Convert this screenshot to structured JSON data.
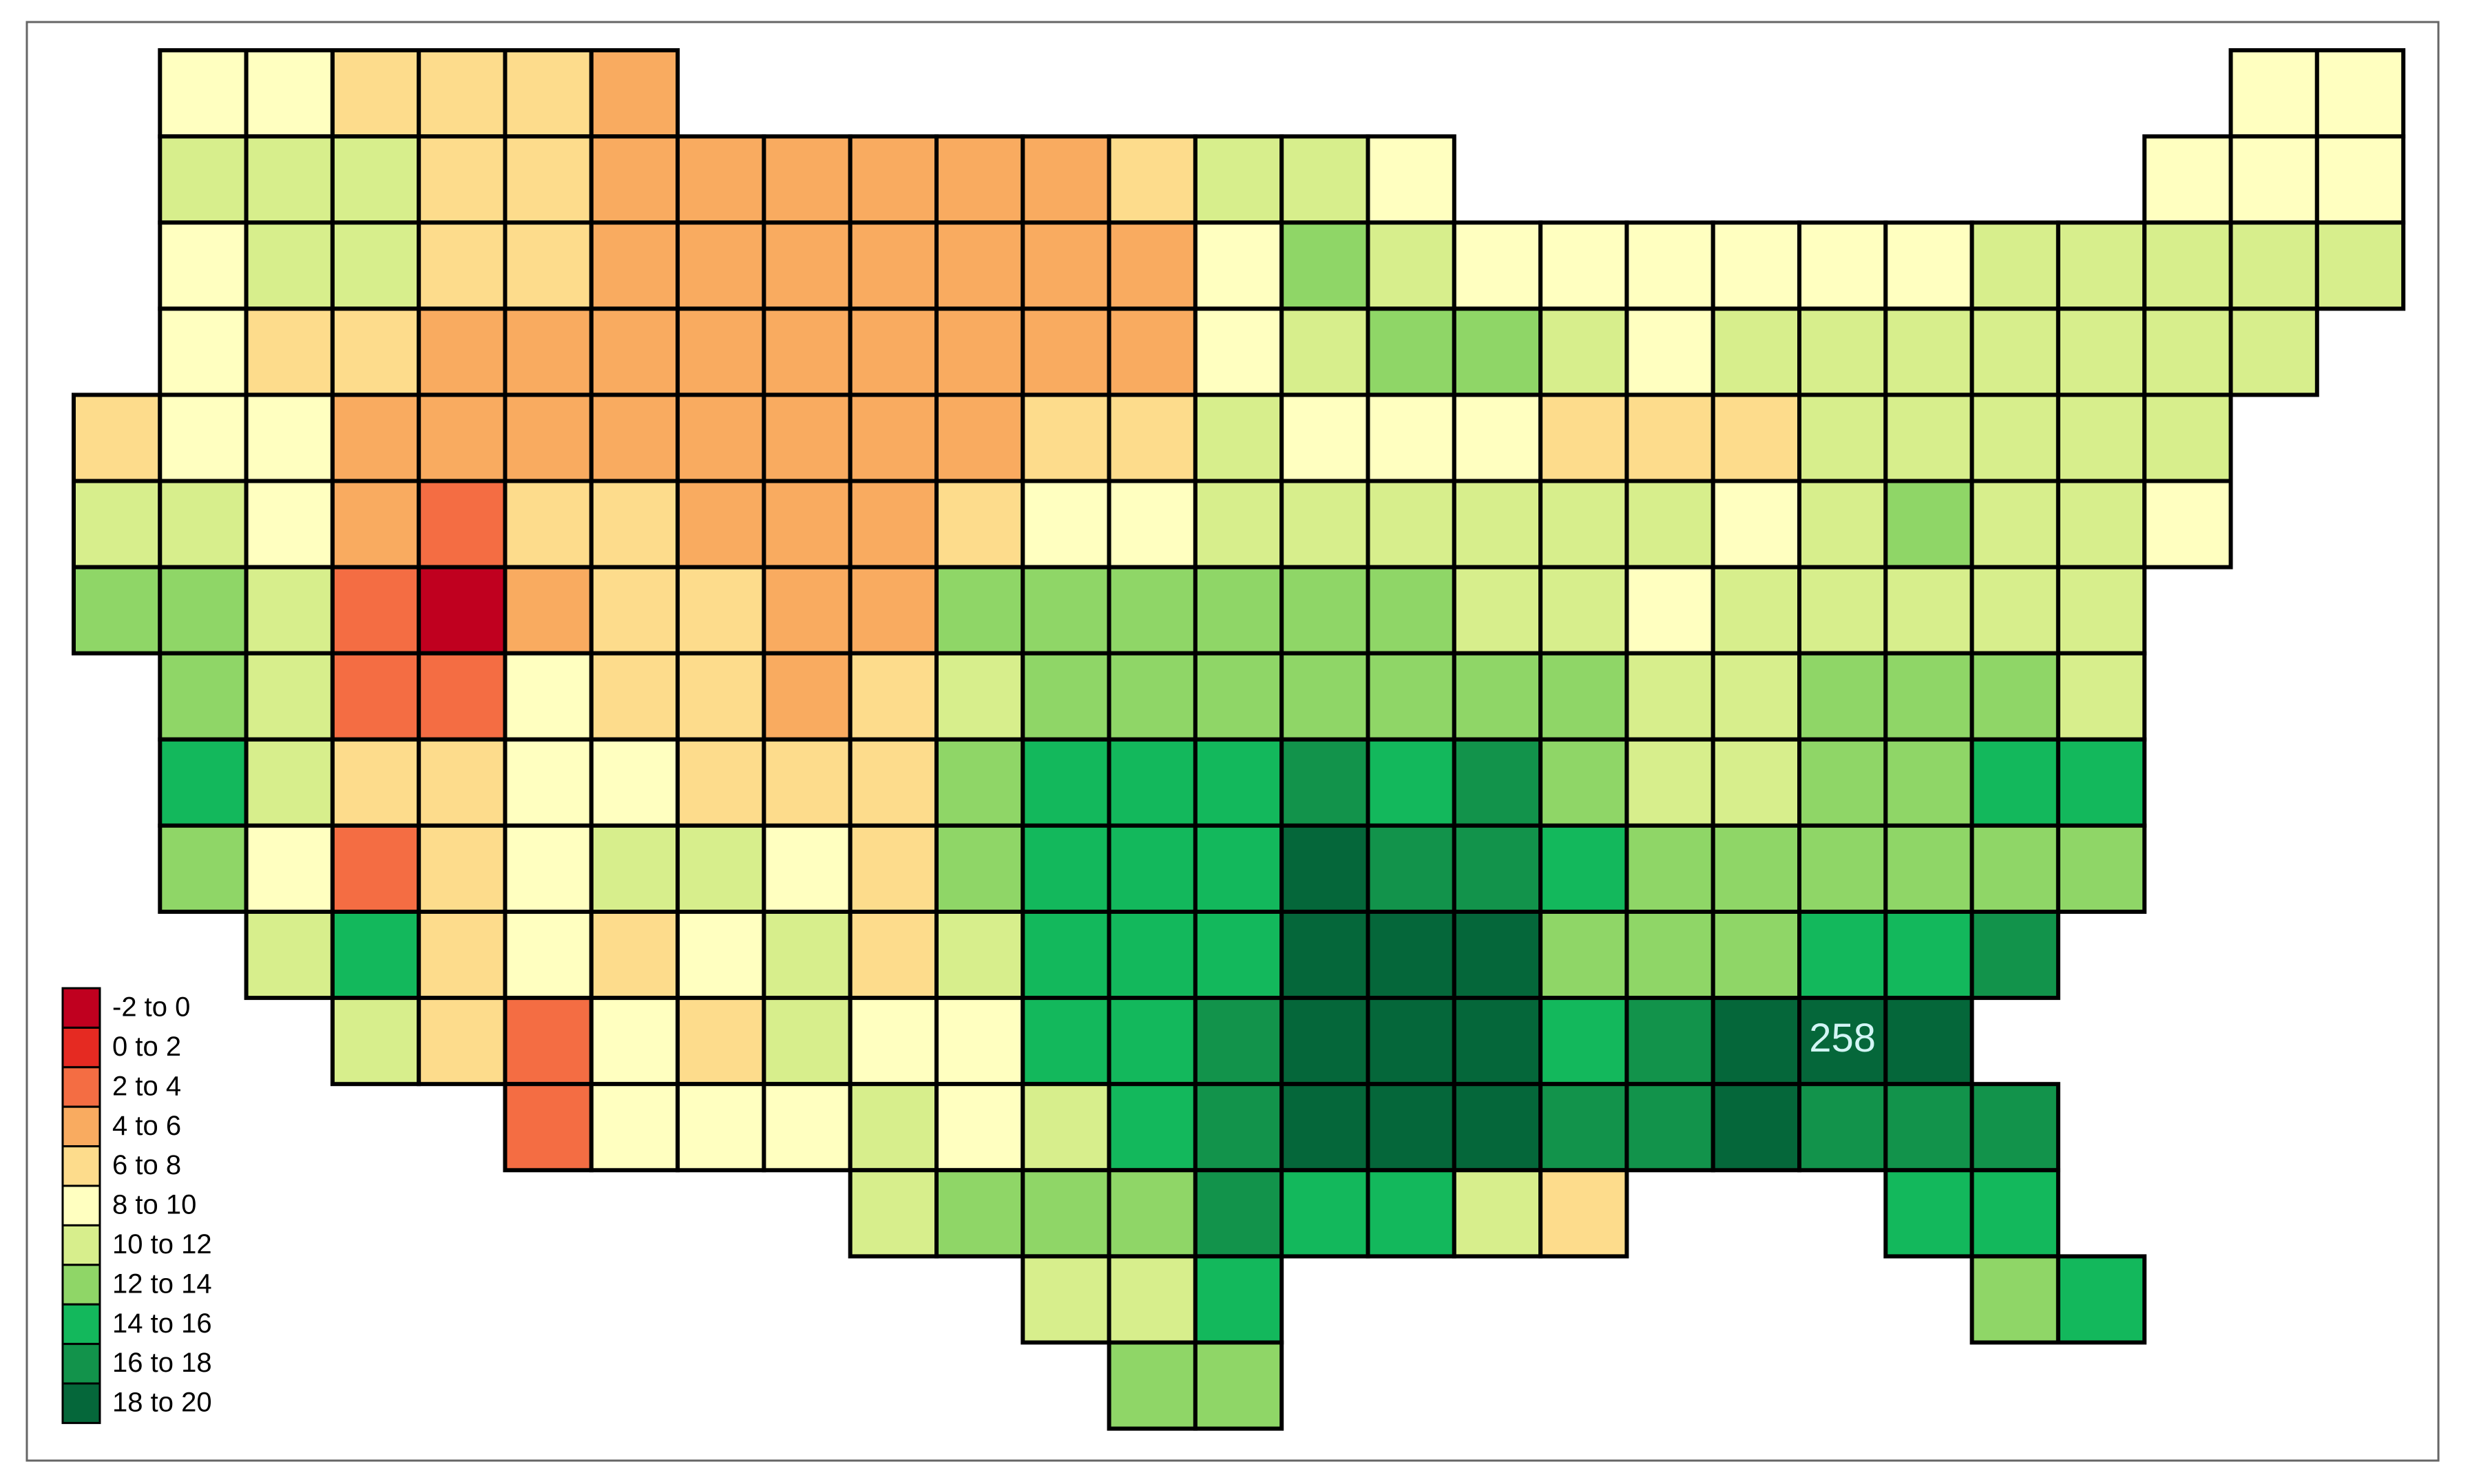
{
  "map": {
    "legend": {
      "bins": [
        -2,
        0,
        2,
        4,
        6,
        8,
        10,
        12,
        14,
        16,
        18,
        20
      ],
      "labels": [
        "-2 to 0",
        "0 to 2",
        "2 to 4",
        "4 to 6",
        "6 to 8",
        "8 to 10",
        "10 to 12",
        "12 to 14",
        "14 to 16",
        "16 to 18",
        "18 to 20"
      ],
      "colors": [
        "#c0001f",
        "#e52a22",
        "#f46d43",
        "#f9ab60",
        "#fddc8c",
        "#ffffc0",
        "#d7ee8c",
        "#8fd667",
        "#13b85c",
        "#12934b",
        "#05673a"
      ]
    },
    "annotation": "258",
    "rows": [
      [
        null,
        9,
        9,
        7,
        7,
        7,
        5,
        null,
        null,
        null,
        null,
        null,
        null,
        null,
        null,
        null,
        null,
        null,
        null,
        null,
        null,
        null,
        null,
        null,
        null,
        9,
        9
      ],
      [
        null,
        11,
        11,
        11,
        7,
        7,
        5,
        5,
        5,
        5,
        5,
        5,
        7,
        11,
        11,
        9,
        null,
        null,
        null,
        null,
        null,
        null,
        null,
        null,
        9,
        9,
        9
      ],
      [
        null,
        9,
        11,
        11,
        7,
        7,
        5,
        5,
        5,
        5,
        5,
        5,
        5,
        9,
        13,
        11,
        9,
        9,
        9,
        9,
        9,
        9,
        11,
        11,
        11,
        11,
        11
      ],
      [
        null,
        9,
        7,
        7,
        5,
        5,
        5,
        5,
        5,
        5,
        5,
        5,
        5,
        9,
        11,
        13,
        13,
        11,
        9,
        11,
        11,
        11,
        11,
        11,
        11,
        11,
        null
      ],
      [
        7,
        9,
        9,
        5,
        5,
        5,
        5,
        5,
        5,
        5,
        5,
        7,
        7,
        11,
        9,
        9,
        9,
        7,
        7,
        7,
        11,
        11,
        11,
        11,
        11,
        null,
        null
      ],
      [
        11,
        11,
        9,
        5,
        3,
        7,
        7,
        5,
        5,
        5,
        7,
        9,
        9,
        11,
        11,
        11,
        11,
        11,
        11,
        9,
        11,
        13,
        11,
        11,
        9,
        null,
        null
      ],
      [
        13,
        13,
        11,
        3,
        -1,
        5,
        7,
        7,
        5,
        5,
        13,
        13,
        13,
        13,
        13,
        13,
        11,
        11,
        9,
        11,
        11,
        11,
        11,
        11,
        null,
        null,
        null
      ],
      [
        null,
        13,
        11,
        3,
        3,
        9,
        7,
        7,
        5,
        7,
        11,
        13,
        13,
        13,
        13,
        13,
        13,
        13,
        11,
        11,
        13,
        13,
        13,
        11,
        null,
        null,
        null
      ],
      [
        null,
        15,
        11,
        7,
        7,
        9,
        9,
        7,
        7,
        7,
        13,
        15,
        15,
        15,
        17,
        15,
        17,
        13,
        11,
        11,
        13,
        13,
        15,
        15,
        null,
        null,
        null
      ],
      [
        null,
        13,
        9,
        3,
        7,
        9,
        11,
        11,
        9,
        7,
        13,
        15,
        15,
        15,
        19,
        17,
        17,
        15,
        13,
        13,
        13,
        13,
        13,
        13,
        null,
        null,
        null
      ],
      [
        null,
        null,
        11,
        15,
        7,
        9,
        7,
        9,
        11,
        7,
        11,
        15,
        15,
        15,
        19,
        19,
        19,
        13,
        13,
        13,
        15,
        15,
        17,
        null,
        null,
        null,
        null
      ],
      [
        null,
        null,
        null,
        11,
        7,
        3,
        9,
        7,
        11,
        9,
        9,
        15,
        15,
        17,
        19,
        19,
        19,
        15,
        17,
        19,
        19,
        19,
        null,
        null,
        null,
        null,
        null
      ],
      [
        null,
        null,
        null,
        null,
        null,
        3,
        9,
        9,
        9,
        11,
        9,
        11,
        15,
        17,
        19,
        19,
        19,
        17,
        17,
        19,
        17,
        17,
        17,
        null,
        null,
        null,
        null
      ],
      [
        null,
        null,
        null,
        null,
        null,
        null,
        null,
        null,
        null,
        11,
        13,
        13,
        13,
        17,
        15,
        15,
        11,
        7,
        null,
        null,
        null,
        15,
        15,
        null,
        null,
        null,
        null
      ],
      [
        null,
        null,
        null,
        null,
        null,
        null,
        null,
        null,
        null,
        null,
        null,
        11,
        11,
        15,
        null,
        null,
        null,
        null,
        null,
        null,
        null,
        null,
        13,
        15,
        null,
        null,
        null
      ],
      [
        null,
        null,
        null,
        null,
        null,
        null,
        null,
        null,
        null,
        null,
        null,
        null,
        13,
        13,
        null,
        null,
        null,
        null,
        null,
        null,
        null,
        null,
        null,
        null,
        null,
        null,
        null
      ]
    ]
  }
}
